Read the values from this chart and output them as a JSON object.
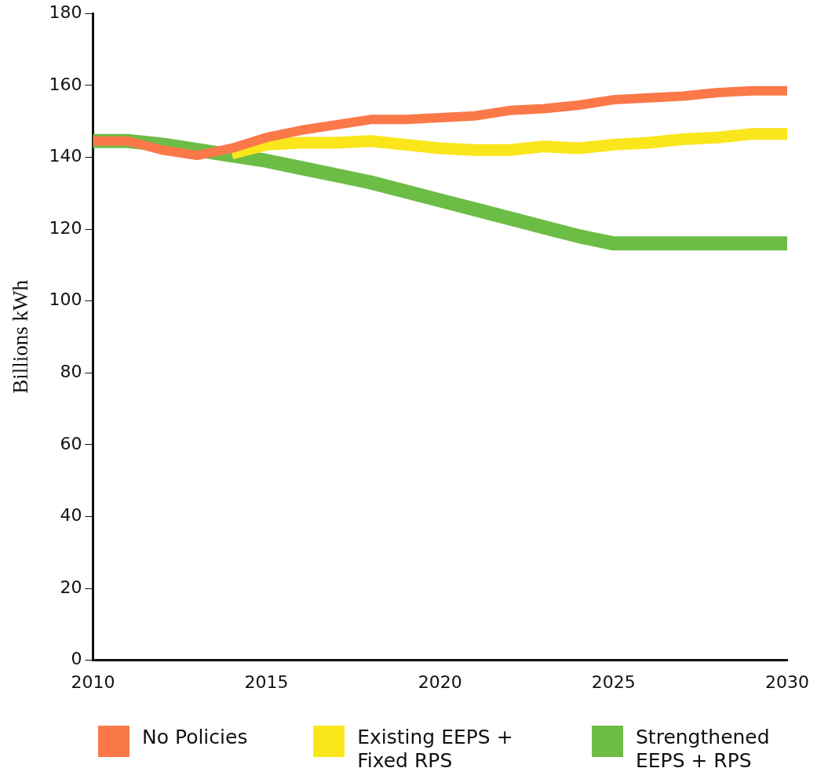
{
  "chart_data": {
    "type": "line",
    "ylabel": "Billions kWh",
    "x": [
      2010,
      2011,
      2012,
      2013,
      2014,
      2015,
      2016,
      2017,
      2018,
      2019,
      2020,
      2021,
      2022,
      2023,
      2024,
      2025,
      2026,
      2027,
      2028,
      2029,
      2030
    ],
    "xlim": [
      2010,
      2030
    ],
    "xticks": [
      2010,
      2015,
      2020,
      2025,
      2030
    ],
    "ylim": [
      0,
      180
    ],
    "yticks": [
      0,
      20,
      40,
      60,
      80,
      100,
      120,
      140,
      160,
      180
    ],
    "grid": false,
    "legend": "bottom",
    "marker": "none",
    "line_style": "solid",
    "series": [
      {
        "name": "No Policies",
        "color": "#fb7849",
        "values": [
          144.5,
          144.5,
          142,
          140.5,
          142.5,
          145.5,
          147.5,
          149,
          150.5,
          150.5,
          151,
          151.5,
          153,
          153.5,
          154.5,
          156,
          156.5,
          157,
          158,
          158.5,
          158.5
        ]
      },
      {
        "name": "Existing EEPS + Fixed RPS",
        "color": "#fbe51b",
        "values": [
          null,
          null,
          null,
          null,
          141,
          143.5,
          144,
          144,
          144.5,
          143.5,
          142.5,
          142,
          142,
          143,
          142.5,
          143.5,
          144,
          145,
          145.5,
          146.5,
          146.5
        ]
      },
      {
        "name": "Strengthened EEPS + RPS",
        "color": "#6cbd45",
        "values": [
          144.5,
          144.5,
          143.5,
          142,
          140.5,
          139,
          137,
          135,
          133,
          130.5,
          128,
          125.5,
          123,
          120.5,
          118,
          116,
          116,
          116,
          116,
          116,
          116
        ]
      }
    ]
  }
}
